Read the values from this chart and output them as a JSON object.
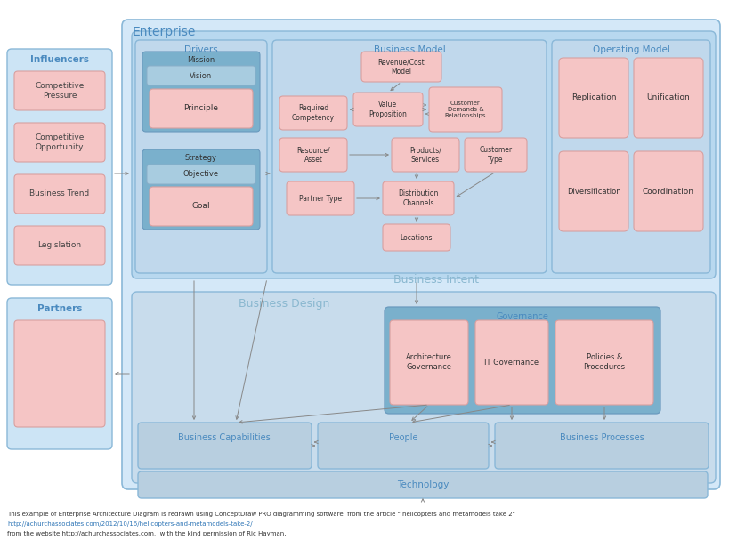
{
  "bg": "#ffffff",
  "LB": "#cce4f5",
  "LB2": "#b8d8ef",
  "MB": "#8ab8d8",
  "DB": "#5b9bd5",
  "PK": "#f5c5c5",
  "PKB": "#d8a0a0",
  "BLU_DARK": "#7ab0cc",
  "BLU_MID": "#a8cce0",
  "BLU_SECT": "#c0d8ec",
  "BLU_BOTTOM": "#b8d0e8",
  "text_blue": "#4a8abf",
  "text_dark": "#444444",
  "footer1": "This example of Enterprise Architecture Diagram is redrawn using ConceptDraw PRO diagramming software  from the article \" helicopters and metamodels take 2\"",
  "footer2": "http://achurchassociates.com/2012/10/16/helicopters-and-metamodels-take-2/",
  "footer3": "from the website http://achurchassociates.com,  with the kind permission of Ric Hayman."
}
